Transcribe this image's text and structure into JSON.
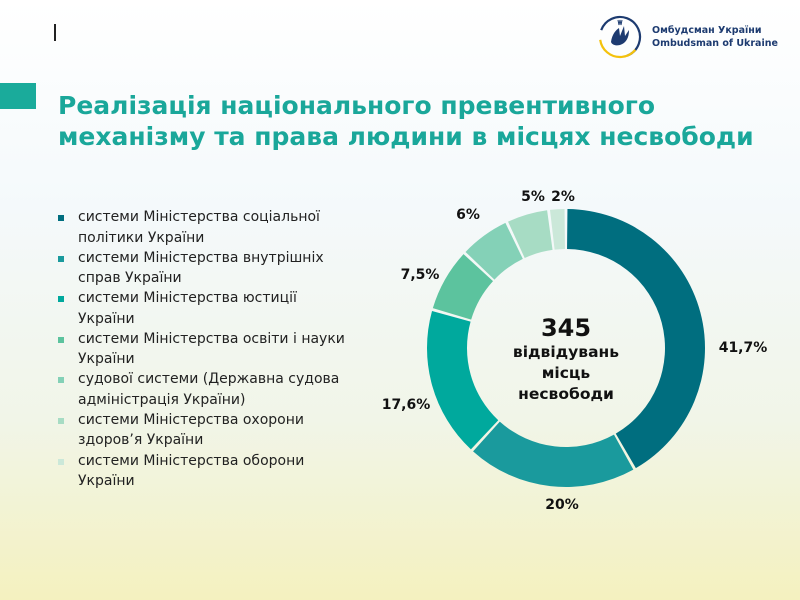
{
  "header": {
    "logo_line1": "Омбудсман України",
    "logo_line2": "Ombudsman of Ukraine"
  },
  "title": "Реалізація національного превентивного механізму та права людини в місцях несвободи",
  "colors": {
    "accent": "#1aab9b",
    "title": "#1aa79a",
    "logo_blue": "#1d3b70",
    "logo_yellow": "#f4c20d"
  },
  "chart_data": {
    "type": "pie",
    "donut": true,
    "center_value": "345",
    "center_label_lines": [
      "відвідувань",
      "місць",
      "несвободи"
    ],
    "categories": [
      "системи Міністерства соціальної політики України",
      "системи Міністерства внутрішніх справ України",
      "системи Міністерства юстиції України",
      "системи Міністерства освіти і науки України",
      "судової системи (Державна судова адміністрація України)",
      "системи Міністерства охорони здоров’я України",
      "системи Міністерства оборони України"
    ],
    "legend_lines": [
      [
        "системи Міністерства соціальної",
        "політики України"
      ],
      [
        "системи Міністерства внутрішніх",
        "справ України"
      ],
      [
        "системи Міністерства юстиції",
        "України"
      ],
      [
        "системи Міністерства освіти і науки",
        "України"
      ],
      [
        "судової системи (Державна судова",
        "адміністрація України)"
      ],
      [
        "системи Міністерства охорони",
        "здоров’я України"
      ],
      [
        "системи Міністерства оборони",
        "України"
      ]
    ],
    "values": [
      41.7,
      20,
      17.6,
      7.5,
      6,
      5,
      2
    ],
    "value_labels": [
      "41,7%",
      "20%",
      "17,6%",
      "7,5%",
      "6%",
      "5%",
      "2%"
    ],
    "colors": [
      "#006e7f",
      "#1a9a9d",
      "#00a99d",
      "#5cc39e",
      "#84d1b7",
      "#a7dcc4",
      "#cbe8d9"
    ],
    "legend_position": "left"
  }
}
